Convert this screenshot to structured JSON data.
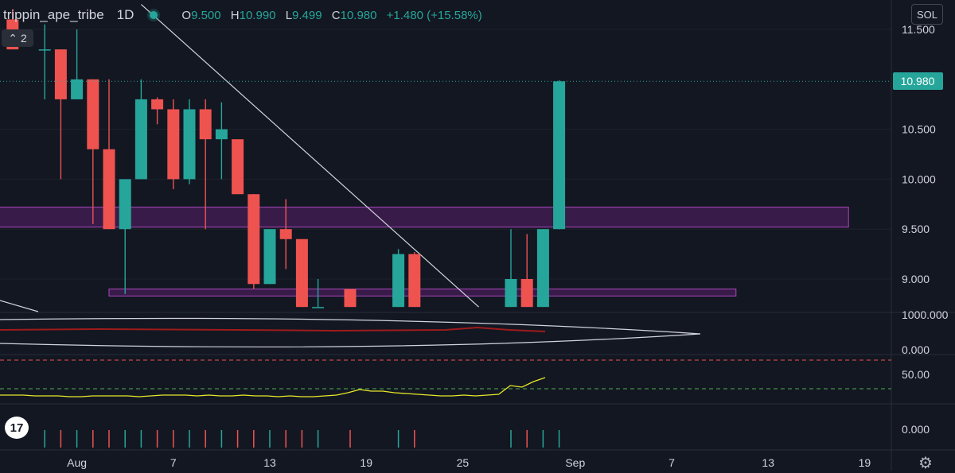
{
  "header": {
    "symbol": "trippin_ape_tribe",
    "timeframe": "1D",
    "open_label": "O",
    "open": "9.500",
    "high_label": "H",
    "high": "10.990",
    "low_label": "L",
    "low": "9.499",
    "close_label": "C",
    "close": "10.980",
    "change": "+1.480 (+15.58%)",
    "collapse_count": "2"
  },
  "currency_button": "SOL",
  "colors": {
    "bg": "#131722",
    "up": "#26a69a",
    "down": "#ef5350",
    "zone": "#9c27b0",
    "rsi": "#e8e829",
    "ema": "#9e1b1b",
    "grid": "#2a2e39",
    "axis_text": "#d1d4dc"
  },
  "icons": {
    "logo": "tradingview-logo",
    "settings": "gear-icon"
  },
  "logo_text": "17",
  "chart_data": {
    "type": "candlestick",
    "title": "trippin_ape_tribe 1D",
    "price_axis": {
      "min": 8.72,
      "max": 11.72,
      "ticks": [
        "11.500",
        "10.500",
        "10.000",
        "9.500",
        "9.000"
      ],
      "last_price": "10.980"
    },
    "x_ticks": [
      {
        "day": 3,
        "label": "Aug"
      },
      {
        "day": 9,
        "label": "7"
      },
      {
        "day": 15,
        "label": "13"
      },
      {
        "day": 21,
        "label": "19"
      },
      {
        "day": 27,
        "label": "25"
      },
      {
        "day": 34,
        "label": "Sep"
      },
      {
        "day": 40,
        "label": "7"
      },
      {
        "day": 46,
        "label": "13"
      },
      {
        "day": 52,
        "label": "19"
      }
    ],
    "candles": [
      {
        "day": -1,
        "o": 11.6,
        "h": 11.7,
        "l": 11.3,
        "c": 11.3
      },
      {
        "day": 1,
        "o": 11.3,
        "h": 11.55,
        "l": 10.8,
        "c": 11.3
      },
      {
        "day": 2,
        "o": 11.3,
        "h": 11.3,
        "l": 10.0,
        "c": 10.8
      },
      {
        "day": 3,
        "o": 10.8,
        "h": 11.5,
        "l": 10.8,
        "c": 11.0
      },
      {
        "day": 4,
        "o": 11.0,
        "h": 11.0,
        "l": 9.55,
        "c": 10.3
      },
      {
        "day": 5,
        "o": 10.3,
        "h": 11.0,
        "l": 9.5,
        "c": 9.5
      },
      {
        "day": 6,
        "o": 9.5,
        "h": 10.0,
        "l": 8.85,
        "c": 10.0
      },
      {
        "day": 7,
        "o": 10.0,
        "h": 11.0,
        "l": 10.0,
        "c": 10.8
      },
      {
        "day": 8,
        "o": 10.8,
        "h": 10.82,
        "l": 10.55,
        "c": 10.7
      },
      {
        "day": 9,
        "o": 10.7,
        "h": 10.8,
        "l": 9.9,
        "c": 10.0
      },
      {
        "day": 10,
        "o": 10.0,
        "h": 10.8,
        "l": 9.95,
        "c": 10.7
      },
      {
        "day": 11,
        "o": 10.7,
        "h": 10.8,
        "l": 9.5,
        "c": 10.4
      },
      {
        "day": 12,
        "o": 10.4,
        "h": 10.77,
        "l": 10.0,
        "c": 10.5
      },
      {
        "day": 13,
        "o": 10.4,
        "h": 10.4,
        "l": 9.85,
        "c": 9.85
      },
      {
        "day": 14,
        "o": 9.85,
        "h": 9.85,
        "l": 8.9,
        "c": 8.95
      },
      {
        "day": 15,
        "o": 8.95,
        "h": 9.5,
        "l": 8.95,
        "c": 9.5
      },
      {
        "day": 16,
        "o": 9.5,
        "h": 9.8,
        "l": 9.1,
        "c": 9.4
      },
      {
        "day": 17,
        "o": 9.4,
        "h": 9.4,
        "l": 8.72,
        "c": 8.72
      },
      {
        "day": 18,
        "o": 8.72,
        "h": 9.0,
        "l": 8.72,
        "c": 8.72
      },
      {
        "day": 20,
        "o": 8.9,
        "h": 8.9,
        "l": 8.72,
        "c": 8.72
      },
      {
        "day": 23,
        "o": 8.72,
        "h": 9.3,
        "l": 8.72,
        "c": 9.25
      },
      {
        "day": 24,
        "o": 9.25,
        "h": 9.27,
        "l": 8.72,
        "c": 8.72
      },
      {
        "day": 30,
        "o": 8.72,
        "h": 9.5,
        "l": 8.72,
        "c": 9.0
      },
      {
        "day": 31,
        "o": 9.0,
        "h": 9.45,
        "l": 8.72,
        "c": 8.72
      },
      {
        "day": 32,
        "o": 8.72,
        "h": 9.5,
        "l": 8.72,
        "c": 9.5
      },
      {
        "day": 33,
        "o": 9.5,
        "h": 10.99,
        "l": 9.499,
        "c": 10.98
      }
    ],
    "zones": [
      {
        "name": "upper-support-zone",
        "from_day": -6,
        "to_day": 51,
        "low": 9.52,
        "high": 9.72
      },
      {
        "name": "lower-support-zone",
        "from_day": 5,
        "to_day": 44,
        "low": 8.83,
        "high": 8.9
      }
    ],
    "trendline": {
      "from": {
        "day": 7,
        "price": 11.75
      },
      "to": {
        "day": 28,
        "price": 8.72
      }
    },
    "volume_pane": {
      "label": "1000.000",
      "zero_label": "0.000"
    },
    "rsi_pane": {
      "label": "50.00",
      "upper_level": 70,
      "lower_level": 30,
      "range": [
        20,
        80
      ],
      "values": [
        30,
        30,
        30,
        29,
        29,
        29,
        28,
        28,
        29,
        29,
        29,
        29,
        28,
        29,
        30,
        30,
        30,
        29,
        30,
        29,
        29,
        30,
        29,
        29,
        28,
        29,
        28,
        28,
        29,
        30,
        33,
        37,
        35,
        35,
        33,
        32,
        31,
        30,
        29,
        29,
        30,
        29,
        30,
        31,
        42,
        40,
        47,
        52
      ]
    },
    "indicator_pane": {
      "label": "0.000"
    }
  }
}
